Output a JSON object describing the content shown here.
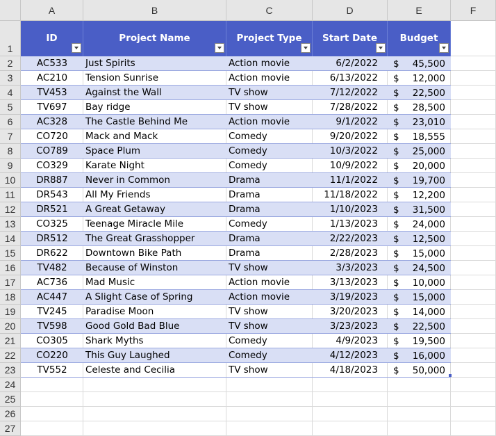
{
  "column_letters": [
    "A",
    "B",
    "C",
    "D",
    "E",
    "F"
  ],
  "row_numbers": [
    1,
    2,
    3,
    4,
    5,
    6,
    7,
    8,
    9,
    10,
    11,
    12,
    13,
    14,
    15,
    16,
    17,
    18,
    19,
    20,
    21,
    22,
    23,
    24,
    25,
    26,
    27
  ],
  "table": {
    "headers": [
      "ID",
      "Project Name",
      "Project Type",
      "Start Date",
      "Budget"
    ],
    "currency_symbol": "$",
    "rows": [
      [
        "AC533",
        "Just Spirits",
        "Action movie",
        "6/2/2022",
        "45,500"
      ],
      [
        "AC210",
        "Tension Sunrise",
        "Action movie",
        "6/13/2022",
        "12,000"
      ],
      [
        "TV453",
        "Against the Wall",
        "TV show",
        "7/12/2022",
        "22,500"
      ],
      [
        "TV697",
        "Bay ridge",
        "TV show",
        "7/28/2022",
        "28,500"
      ],
      [
        "AC328",
        "The Castle Behind Me",
        "Action movie",
        "9/1/2022",
        "23,010"
      ],
      [
        "CO720",
        "Mack and Mack",
        "Comedy",
        "9/20/2022",
        "18,555"
      ],
      [
        "CO789",
        "Space Plum",
        "Comedy",
        "10/3/2022",
        "25,000"
      ],
      [
        "CO329",
        "Karate Night",
        "Comedy",
        "10/9/2022",
        "20,000"
      ],
      [
        "DR887",
        "Never in Common",
        "Drama",
        "11/1/2022",
        "19,700"
      ],
      [
        "DR543",
        "All My Friends",
        "Drama",
        "11/18/2022",
        "12,200"
      ],
      [
        "DR521",
        "A Great Getaway",
        "Drama",
        "1/10/2023",
        "31,500"
      ],
      [
        "CO325",
        "Teenage Miracle Mile",
        "Comedy",
        "1/13/2023",
        "24,000"
      ],
      [
        "DR512",
        "The Great Grasshopper",
        "Drama",
        "2/22/2023",
        "12,500"
      ],
      [
        "DR622",
        "Downtown Bike Path",
        "Drama",
        "2/28/2023",
        "15,000"
      ],
      [
        "TV482",
        "Because of Winston",
        "TV show",
        "3/3/2023",
        "24,500"
      ],
      [
        "AC736",
        "Mad Music",
        "Action movie",
        "3/13/2023",
        "10,000"
      ],
      [
        "AC447",
        "A Slight Case of Spring",
        "Action movie",
        "3/19/2023",
        "15,000"
      ],
      [
        "TV245",
        "Paradise Moon",
        "TV show",
        "3/20/2023",
        "14,000"
      ],
      [
        "TV598",
        "Good Gold Bad Blue",
        "TV show",
        "3/23/2023",
        "22,500"
      ],
      [
        "CO305",
        "Shark Myths",
        "Comedy",
        "4/9/2023",
        "19,500"
      ],
      [
        "CO220",
        "This Guy Laughed",
        "Comedy",
        "4/12/2023",
        "16,000"
      ],
      [
        "TV552",
        "Celeste and Cecilia",
        "TV show",
        "4/18/2023",
        "50,000"
      ]
    ]
  }
}
